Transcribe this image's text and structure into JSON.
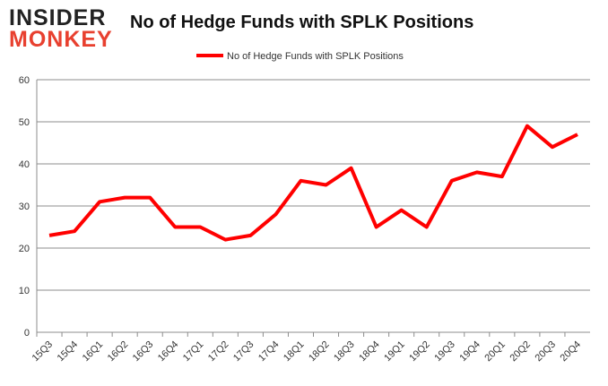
{
  "logo": {
    "line1": "INSIDER",
    "line2": "MONKEY"
  },
  "chart_data": {
    "type": "line",
    "title": "No of Hedge Funds with SPLK Positions",
    "xlabel": "",
    "ylabel": "",
    "ylim": [
      0,
      60
    ],
    "yticks": [
      0,
      10,
      20,
      30,
      40,
      50,
      60
    ],
    "grid": true,
    "legend_position": "top-center",
    "categories": [
      "15Q3",
      "15Q4",
      "16Q1",
      "16Q2",
      "16Q3",
      "16Q4",
      "17Q1",
      "17Q2",
      "17Q3",
      "17Q4",
      "18Q1",
      "18Q2",
      "18Q3",
      "18Q4",
      "19Q1",
      "19Q2",
      "19Q3",
      "19Q4",
      "20Q1",
      "20Q2",
      "20Q3",
      "20Q4"
    ],
    "series": [
      {
        "name": "No of Hedge Funds with SPLK Positions",
        "color": "#ff0000",
        "values": [
          23,
          24,
          31,
          32,
          32,
          25,
          25,
          22,
          23,
          28,
          36,
          35,
          39,
          25,
          29,
          25,
          36,
          38,
          37,
          49,
          44,
          47
        ]
      }
    ]
  }
}
